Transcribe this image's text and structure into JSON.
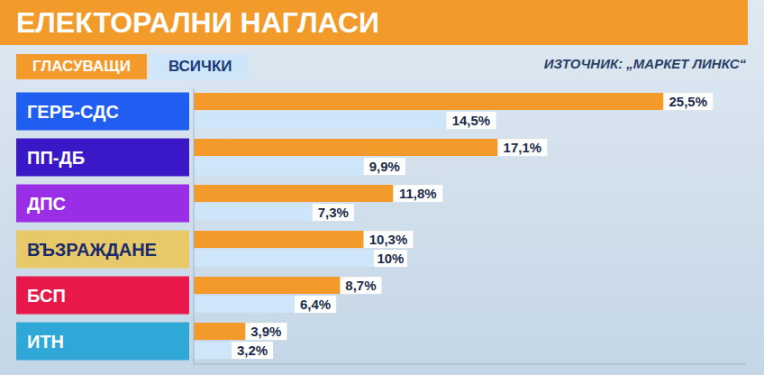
{
  "chart_data": {
    "type": "bar",
    "orientation": "horizontal",
    "title": "ЕЛЕКТОРАЛНИ НАГЛАСИ",
    "source": "ИЗТОЧНИК: „МАРКЕТ ЛИНКС“",
    "categories": [
      "ГЕРБ-СДС",
      "ПП-ДБ",
      "ДПС",
      "ВЪЗРАЖДАНЕ",
      "БСП",
      "ИТН"
    ],
    "series": [
      {
        "name": "ГЛАСУВАЩИ",
        "color": "#f39a2b",
        "values": [
          25.5,
          17.1,
          11.8,
          10.3,
          8.7,
          3.9
        ],
        "value_labels": [
          "25,5%",
          "17,1%",
          "11,8%",
          "10,3%",
          "8,7%",
          "3,9%"
        ]
      },
      {
        "name": "ВСИЧКИ",
        "color": "#cfe6fa",
        "values": [
          14.5,
          9.9,
          7.3,
          10,
          6.4,
          3.2
        ],
        "value_labels": [
          "14,5%",
          "9,9%",
          "7,3%",
          "10%",
          "6,4%",
          "3,2%"
        ]
      }
    ],
    "xlim": [
      0,
      28
    ],
    "data_labels": true,
    "tick_labels": "y",
    "legend": "top-left",
    "grid": false
  }
}
